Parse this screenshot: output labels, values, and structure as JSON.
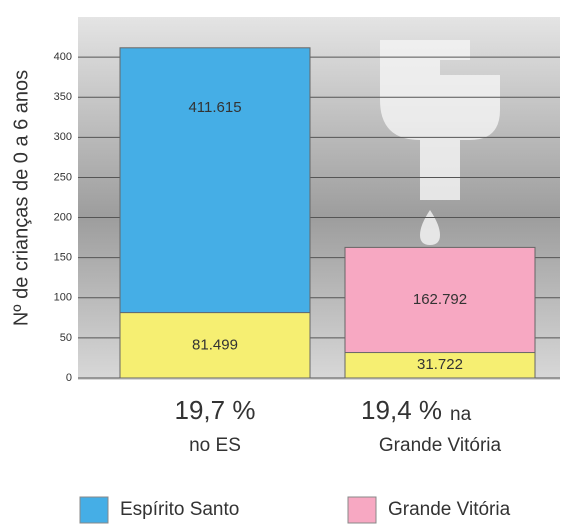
{
  "chart_data": {
    "type": "bar",
    "ylabel": "Nº de crianças de 0 a 6 anos",
    "categories": [
      {
        "rate": "19,7 %",
        "lines": [
          "no ES"
        ]
      },
      {
        "rate": "19,4 %",
        "lines": [
          "na",
          "Grande Vitória"
        ]
      }
    ],
    "series": [
      {
        "name": "Espírito Santo",
        "color": "#45aee6",
        "values": [
          411.615,
          null
        ],
        "value_labels": [
          "411.615",
          null
        ]
      },
      {
        "name": "Grande Vitória",
        "color": "#f7a8c2",
        "values": [
          null,
          162.792
        ],
        "value_labels": [
          null,
          "162.792"
        ]
      },
      {
        "color": "#f6ef72",
        "values": [
          81.499,
          31.722
        ],
        "value_labels": [
          "81.499",
          "31.722"
        ]
      }
    ],
    "ylim": [
      0,
      450
    ],
    "yticks": [
      0,
      50,
      100,
      150,
      200,
      250,
      300,
      350,
      400
    ],
    "grid": true
  }
}
